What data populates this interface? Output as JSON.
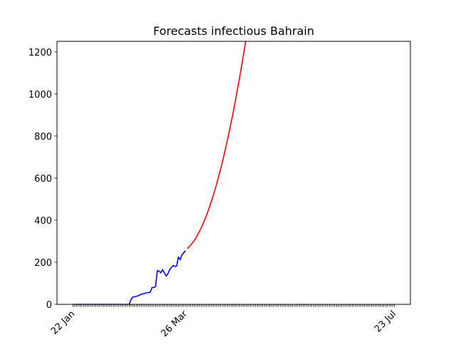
{
  "chart_data": {
    "type": "line",
    "title": "Forecasts infectious Bahrain",
    "categories": [
      "22 Jan",
      null,
      null,
      null,
      null,
      null,
      null,
      null,
      null,
      null,
      null,
      null,
      null,
      null,
      null,
      null,
      null,
      null,
      null,
      null,
      null,
      null,
      null,
      null,
      null,
      null,
      null,
      null,
      null,
      null,
      null,
      null,
      null,
      null,
      null,
      null,
      null,
      null,
      null,
      null,
      null,
      null,
      null,
      null,
      null,
      null,
      null,
      null,
      null,
      null,
      null,
      null,
      null,
      null,
      null,
      null,
      null,
      null,
      null,
      null,
      null,
      null,
      null,
      null,
      "26 Mar",
      null,
      null,
      null,
      null,
      null,
      null,
      null,
      null,
      null,
      null,
      null,
      null,
      null,
      null,
      null,
      null,
      null,
      null,
      null,
      null,
      null,
      null,
      null,
      null,
      null,
      null,
      null,
      null,
      null,
      null,
      null,
      null,
      null,
      null,
      null,
      null,
      null,
      null,
      null,
      null,
      null,
      null,
      null,
      null,
      null,
      null,
      null,
      null,
      null,
      null,
      null,
      null,
      null,
      null,
      null,
      null,
      null,
      null,
      null,
      null,
      null,
      null,
      null,
      null,
      null,
      null,
      null,
      null,
      null,
      null,
      null,
      null,
      null,
      null,
      null,
      null,
      null,
      null,
      null,
      null,
      null,
      null,
      null,
      null,
      null,
      null,
      null,
      null,
      null,
      null,
      null,
      null,
      null,
      null,
      null,
      null,
      null,
      null,
      null,
      null,
      null,
      null,
      null,
      null,
      null,
      null,
      null,
      null,
      null,
      null,
      null,
      null,
      null,
      null,
      null,
      null,
      null,
      null,
      "23 Jul"
    ],
    "series": [
      {
        "color": "#0000ff",
        "values": [
          0,
          0,
          0,
          0,
          0,
          0,
          0,
          0,
          0,
          0,
          0,
          0,
          0,
          0,
          0,
          0,
          0,
          0,
          0,
          0,
          0,
          0,
          0,
          0,
          0,
          0,
          0,
          0,
          0,
          0,
          0,
          0,
          0,
          23,
          35,
          36,
          38,
          40,
          45,
          49,
          50,
          52,
          55,
          56,
          58,
          80,
          80,
          85,
          160,
          158,
          150,
          165,
          150,
          135,
          145,
          165,
          175,
          185,
          180,
          182,
          225,
          212,
          235,
          245,
          255,
          null,
          null,
          null,
          null,
          null,
          null,
          null,
          null,
          null,
          null,
          null,
          null,
          null,
          null,
          null,
          null,
          null,
          null,
          null,
          null,
          null,
          null,
          null,
          null,
          null,
          null,
          null,
          null,
          null,
          null,
          null,
          null,
          null,
          null,
          null,
          null,
          null,
          null,
          null,
          null,
          null,
          null,
          null,
          null,
          null,
          null,
          null,
          null,
          null,
          null,
          null,
          null,
          null,
          null,
          null,
          null,
          null,
          null,
          null,
          null,
          null,
          null,
          null,
          null,
          null,
          null,
          null,
          null,
          null,
          null,
          null,
          null,
          null,
          null,
          null,
          null,
          null,
          null,
          null,
          null,
          null,
          null,
          null,
          null,
          null,
          null,
          null,
          null,
          null,
          null,
          null,
          null,
          null,
          null,
          null,
          null,
          null,
          null,
          null,
          null,
          null,
          null,
          null,
          null,
          null,
          null,
          null,
          null,
          null,
          null,
          null,
          null,
          null,
          null,
          null,
          null,
          null,
          null,
          null
        ]
      },
      {
        "color": "#ff0000",
        "values": [
          null,
          null,
          null,
          null,
          null,
          null,
          null,
          null,
          null,
          null,
          null,
          null,
          null,
          null,
          null,
          null,
          null,
          null,
          null,
          null,
          null,
          null,
          null,
          null,
          null,
          null,
          null,
          null,
          null,
          null,
          null,
          null,
          null,
          null,
          null,
          null,
          null,
          null,
          null,
          null,
          null,
          null,
          null,
          null,
          null,
          null,
          null,
          null,
          null,
          null,
          null,
          null,
          null,
          null,
          null,
          null,
          null,
          null,
          null,
          null,
          null,
          null,
          null,
          null,
          null,
          265,
          273,
          282,
          292,
          303,
          316,
          331,
          347,
          364,
          382,
          402,
          423,
          446,
          470,
          495,
          521,
          549,
          579,
          610,
          642,
          675,
          710,
          746,
          783,
          822,
          863,
          904,
          947,
          992,
          1038,
          1085,
          1133,
          1183,
          1234,
          1287,
          null,
          null,
          null,
          null,
          null,
          null,
          null,
          null,
          null,
          null,
          null,
          null,
          null,
          null,
          null,
          null,
          null,
          null,
          null,
          null,
          null,
          null,
          null,
          null,
          null,
          null,
          null,
          null,
          null,
          null,
          null,
          null,
          null,
          null,
          null,
          null,
          null,
          null,
          null,
          null,
          null,
          null,
          null,
          null,
          null,
          null,
          null,
          null,
          null,
          null,
          null,
          null,
          null,
          null,
          null,
          null,
          null,
          null,
          null,
          null,
          null,
          null,
          null,
          null,
          null,
          null,
          null,
          null,
          null,
          null,
          null,
          null,
          null,
          null,
          null,
          null,
          null,
          null,
          null,
          null,
          null,
          null,
          null,
          null
        ]
      }
    ],
    "ylim": [
      0,
      1250
    ],
    "yticks": [
      0,
      200,
      400,
      600,
      800,
      1000,
      1200
    ]
  }
}
